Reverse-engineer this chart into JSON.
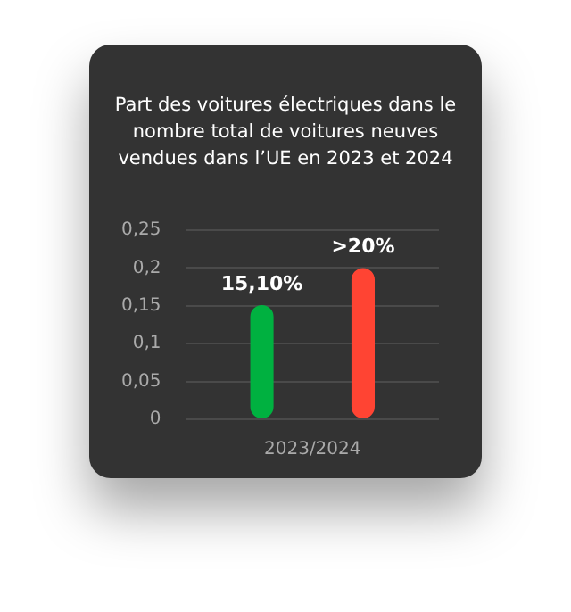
{
  "chart_data": {
    "type": "bar",
    "title": "Part des voitures électriques dans le nombre total de voitures neuves vendues dans l’UE en 2023 et 2024",
    "categories": [
      "2023/2024"
    ],
    "series": [
      {
        "color": "#00b140",
        "values": [
          0.151
        ],
        "value_labels": [
          "15,10%"
        ]
      },
      {
        "color": "#ff4433",
        "values": [
          0.2
        ],
        "value_labels": [
          ">20%"
        ]
      }
    ],
    "ylim": [
      0,
      0.25
    ],
    "yticks": [
      {
        "value": 0,
        "label": "0"
      },
      {
        "value": 0.05,
        "label": "0,05"
      },
      {
        "value": 0.1,
        "label": "0,1"
      },
      {
        "value": 0.15,
        "label": "0,15"
      },
      {
        "value": 0.2,
        "label": "0,2"
      },
      {
        "value": 0.25,
        "label": "0,25"
      }
    ],
    "grid": "y",
    "legend": false
  }
}
